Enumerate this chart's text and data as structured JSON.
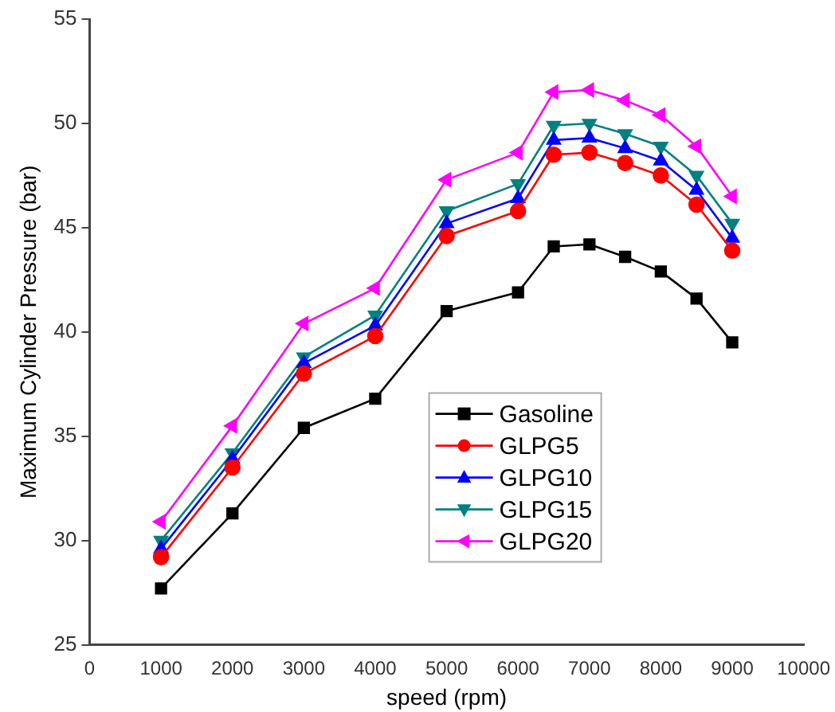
{
  "chart_data": {
    "type": "line",
    "xlabel": "speed (rpm)",
    "ylabel": "Maximum Cylinder Pressure (bar)",
    "x": [
      1000,
      2000,
      3000,
      4000,
      5000,
      6000,
      6500,
      7000,
      7500,
      8000,
      8500,
      9000
    ],
    "series": [
      {
        "name": "Gasoline",
        "color": "#000000",
        "marker": "square",
        "values": [
          27.7,
          31.3,
          35.4,
          36.8,
          41.0,
          41.9,
          44.1,
          44.2,
          43.6,
          42.9,
          41.6,
          39.5
        ]
      },
      {
        "name": "GLPG5",
        "color": "#ff0000",
        "marker": "circle",
        "values": [
          29.2,
          33.5,
          38.0,
          39.8,
          44.6,
          45.8,
          48.5,
          48.6,
          48.1,
          47.5,
          46.1,
          43.9
        ]
      },
      {
        "name": "GLPG10",
        "color": "#0000ff",
        "marker": "triangle",
        "values": [
          29.6,
          33.9,
          38.5,
          40.3,
          45.2,
          46.4,
          49.2,
          49.3,
          48.8,
          48.2,
          46.8,
          44.5
        ]
      },
      {
        "name": "GLPG15",
        "color": "#008080",
        "marker": "triangle-down",
        "values": [
          30.0,
          34.2,
          38.8,
          40.8,
          45.8,
          47.1,
          49.9,
          50.0,
          49.5,
          48.9,
          47.5,
          45.2
        ]
      },
      {
        "name": "GLPG20",
        "color": "#ff00ff",
        "marker": "triangle-left",
        "values": [
          30.9,
          35.5,
          40.4,
          42.1,
          47.3,
          48.6,
          51.5,
          51.6,
          51.1,
          50.4,
          48.9,
          46.5
        ]
      }
    ],
    "xlim": [
      0,
      10000
    ],
    "xticks": [
      0,
      1000,
      2000,
      3000,
      4000,
      5000,
      6000,
      7000,
      8000,
      9000,
      10000
    ],
    "ylim": [
      25,
      55
    ],
    "yticks": [
      25,
      30,
      35,
      40,
      45,
      50,
      55
    ],
    "grid": false,
    "legend": "bottom",
    "line_style": "solid"
  }
}
